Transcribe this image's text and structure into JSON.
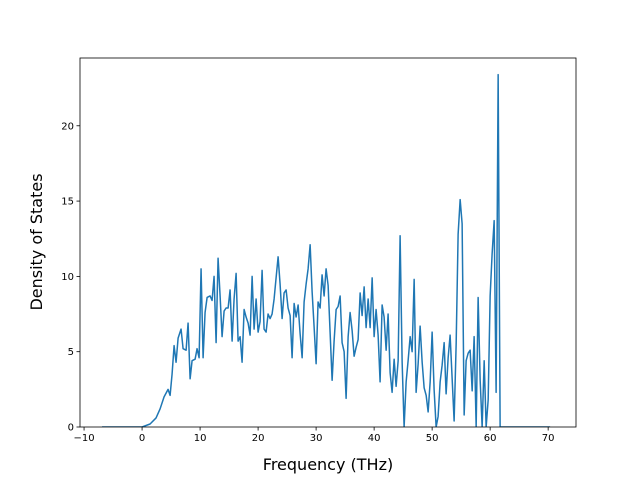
{
  "chart_data": {
    "type": "line",
    "xlabel": "Frequency (THz)",
    "ylabel": "Density of States",
    "xlim": [
      -10.7,
      74.8
    ],
    "ylim": [
      0,
      24.5
    ],
    "xticks": [
      {
        "value": -10,
        "label": "−10"
      },
      0,
      10,
      20,
      30,
      40,
      50,
      60,
      70
    ],
    "yticks": [
      0,
      5,
      10,
      15,
      20
    ],
    "series": [
      {
        "color": "#1f77b4",
        "x": [
          -6.9,
          0,
          1.38,
          2.41,
          3.1,
          3.79,
          4.48,
          4.83,
          5.17,
          5.52,
          5.86,
          6.21,
          6.72,
          7.07,
          7.59,
          7.93,
          8.28,
          8.62,
          9.14,
          9.48,
          9.83,
          10.17,
          10.52,
          10.86,
          11.21,
          11.72,
          12.07,
          12.41,
          12.76,
          13.1,
          13.45,
          13.79,
          14.14,
          14.48,
          14.83,
          15.17,
          15.52,
          15.86,
          16.21,
          16.55,
          16.9,
          17.24,
          17.59,
          17.93,
          18.28,
          18.62,
          18.97,
          19.31,
          19.66,
          20.0,
          20.34,
          20.69,
          21.03,
          21.38,
          21.72,
          22.07,
          22.41,
          22.76,
          23.1,
          23.45,
          23.79,
          24.14,
          24.48,
          24.83,
          25.17,
          25.52,
          25.86,
          26.21,
          26.55,
          26.9,
          27.24,
          27.59,
          27.93,
          28.28,
          28.62,
          28.97,
          29.31,
          29.66,
          30.0,
          30.34,
          30.69,
          31.03,
          31.38,
          31.72,
          32.07,
          32.41,
          32.76,
          33.1,
          33.45,
          33.79,
          34.14,
          34.48,
          34.83,
          35.17,
          35.52,
          35.86,
          36.21,
          36.55,
          36.9,
          37.24,
          37.59,
          37.93,
          38.28,
          38.62,
          38.97,
          39.31,
          39.66,
          40.0,
          40.34,
          40.69,
          41.03,
          41.38,
          41.72,
          42.07,
          42.41,
          42.76,
          43.1,
          43.45,
          43.79,
          44.14,
          44.48,
          44.83,
          45.17,
          45.52,
          45.86,
          46.21,
          46.55,
          46.9,
          47.24,
          47.59,
          47.93,
          48.28,
          48.62,
          48.97,
          49.31,
          49.66,
          50.0,
          50.34,
          50.69,
          51.03,
          51.38,
          51.72,
          52.07,
          52.41,
          52.76,
          53.1,
          53.45,
          53.79,
          54.14,
          54.48,
          54.83,
          55.17,
          55.52,
          55.86,
          56.21,
          56.55,
          56.9,
          57.24,
          57.59,
          57.93,
          58.28,
          58.62,
          58.97,
          59.31,
          59.66,
          60.0,
          60.34,
          60.69,
          61.03,
          61.38,
          61.72,
          62.07,
          70.0,
          70.34
        ],
        "values": [
          0,
          0,
          0.2,
          0.6,
          1.2,
          2.0,
          2.5,
          2.1,
          3.5,
          5.4,
          4.3,
          5.9,
          6.5,
          5.2,
          5.1,
          6.9,
          3.2,
          4.4,
          4.5,
          5.2,
          4.6,
          10.5,
          4.6,
          7.6,
          8.6,
          8.7,
          8.4,
          10.0,
          5.6,
          11.2,
          8.7,
          6.0,
          7.7,
          7.9,
          7.9,
          9.1,
          5.7,
          8.5,
          10.2,
          5.7,
          6.0,
          4.3,
          7.8,
          7.3,
          6.9,
          6.1,
          10.0,
          6.5,
          8.5,
          6.3,
          7.0,
          10.4,
          6.5,
          6.3,
          7.5,
          7.2,
          7.5,
          8.5,
          9.9,
          11.3,
          9.5,
          7.2,
          8.9,
          9.1,
          7.9,
          7.4,
          4.6,
          8.2,
          7.3,
          8.1,
          6.2,
          4.6,
          8.3,
          9.5,
          10.5,
          12.1,
          9.0,
          6.6,
          4.2,
          8.3,
          7.9,
          10.1,
          8.7,
          10.5,
          9.4,
          6.3,
          3.1,
          5.7,
          7.8,
          8.0,
          8.7,
          5.6,
          5.0,
          1.9,
          6.0,
          7.6,
          6.4,
          4.7,
          5.3,
          5.8,
          8.9,
          7.4,
          9.3,
          6.6,
          8.5,
          6.6,
          9.9,
          6.0,
          7.8,
          6.1,
          3.0,
          8.1,
          7.3,
          5.1,
          7.5,
          3.6,
          2.3,
          4.5,
          2.7,
          4.4,
          12.7,
          4.3,
          0.0,
          3.0,
          4.4,
          6.0,
          5.0,
          9.8,
          2.3,
          4.2,
          6.7,
          4.3,
          2.6,
          2.1,
          1.0,
          3.0,
          6.3,
          2.5,
          0.0,
          0.7,
          3.0,
          4.1,
          5.6,
          2.2,
          4.6,
          6.1,
          3.2,
          0.4,
          5.5,
          12.8,
          15.1,
          13.5,
          0.8,
          4.4,
          4.9,
          5.1,
          2.4,
          6.0,
          0.0,
          8.6,
          3.1,
          0.0,
          4.4,
          0.0,
          1.8,
          8.7,
          11.5,
          13.7,
          2.3,
          23.4,
          0.0,
          0.0,
          0,
          0
        ]
      }
    ]
  }
}
